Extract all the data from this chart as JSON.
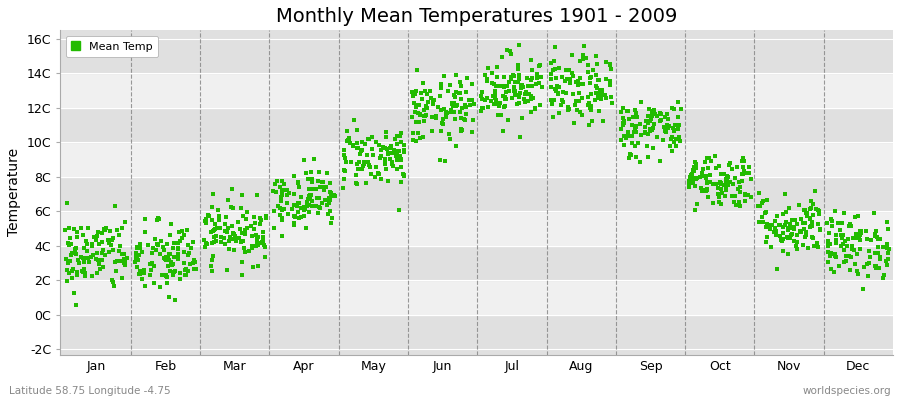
{
  "title": "Monthly Mean Temperatures 1901 - 2009",
  "ylabel": "Temperature",
  "lat_lon_text": "Latitude 58.75 Longitude -4.75",
  "source_text": "worldspecies.org",
  "legend_label": "Mean Temp",
  "dot_color": "#22bb00",
  "background_color": "#ffffff",
  "plot_bg_light": "#f0f0f0",
  "plot_bg_dark": "#e0e0e0",
  "ylim": [
    -2,
    16
  ],
  "yticks": [
    -2,
    0,
    2,
    4,
    6,
    8,
    10,
    12,
    14,
    16
  ],
  "ytick_labels": [
    "-2C",
    "0C",
    "2C",
    "4C",
    "6C",
    "8C",
    "10C",
    "12C",
    "14C",
    "16C"
  ],
  "months": [
    "Jan",
    "Feb",
    "Mar",
    "Apr",
    "May",
    "Jun",
    "Jul",
    "Aug",
    "Sep",
    "Oct",
    "Nov",
    "Dec"
  ],
  "num_years": 109,
  "monthly_mean_temps": [
    3.5,
    3.2,
    4.8,
    6.8,
    9.2,
    11.8,
    13.2,
    13.0,
    10.8,
    7.8,
    5.2,
    4.0
  ],
  "monthly_std_temps": [
    1.1,
    1.1,
    0.9,
    0.85,
    0.9,
    1.0,
    1.0,
    1.0,
    0.85,
    0.8,
    0.9,
    0.95
  ]
}
